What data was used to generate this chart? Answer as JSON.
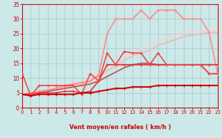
{
  "xlabel": "Vent moyen/en rafales ( km/h )",
  "xlim": [
    0,
    23
  ],
  "ylim": [
    0,
    35
  ],
  "yticks": [
    0,
    5,
    10,
    15,
    20,
    25,
    30,
    35
  ],
  "xticks": [
    0,
    1,
    2,
    3,
    4,
    5,
    6,
    7,
    8,
    9,
    10,
    11,
    12,
    13,
    14,
    15,
    16,
    17,
    18,
    19,
    20,
    21,
    22,
    23
  ],
  "bg_color": "#cce8e8",
  "grid_color": "#aacccc",
  "lines": [
    {
      "comment": "bottom dark red nearly flat line with + markers",
      "x": [
        0,
        1,
        2,
        3,
        4,
        5,
        6,
        7,
        8,
        9,
        10,
        11,
        12,
        13,
        14,
        15,
        16,
        17,
        18,
        19,
        20,
        21,
        22,
        23
      ],
      "y": [
        4.5,
        4.0,
        4.5,
        4.5,
        4.5,
        4.5,
        4.5,
        5.0,
        5.0,
        5.5,
        6.0,
        6.5,
        6.5,
        7.0,
        7.0,
        7.0,
        7.5,
        7.5,
        7.5,
        7.5,
        7.5,
        7.5,
        7.5,
        7.5
      ],
      "color": "#cc0000",
      "lw": 1.5,
      "marker": "+",
      "ms": 3.5,
      "zorder": 5
    },
    {
      "comment": "medium dark red with + markers, jagged, starts at ~4, goes to ~15",
      "x": [
        0,
        1,
        2,
        3,
        4,
        5,
        6,
        7,
        8,
        9,
        10,
        11,
        12,
        13,
        14,
        15,
        16,
        17,
        18,
        19,
        20,
        21,
        22,
        23
      ],
      "y": [
        4.5,
        4.5,
        5.0,
        5.0,
        5.0,
        5.5,
        5.5,
        5.0,
        5.5,
        9.0,
        14.5,
        14.5,
        14.5,
        14.5,
        14.5,
        14.5,
        14.5,
        14.5,
        14.5,
        14.5,
        14.5,
        14.5,
        14.5,
        14.5
      ],
      "color": "#dd3333",
      "lw": 1.2,
      "marker": "+",
      "ms": 3.5,
      "zorder": 4
    },
    {
      "comment": "jagged line with + markers, starts ~11, dips, rises to ~19",
      "x": [
        0,
        1,
        2,
        3,
        4,
        5,
        6,
        7,
        8,
        9,
        10,
        11,
        12,
        13,
        14,
        15,
        16,
        17,
        18,
        19,
        20,
        21,
        22,
        23
      ],
      "y": [
        11.5,
        4.0,
        7.5,
        7.5,
        7.5,
        7.5,
        7.5,
        4.5,
        11.5,
        9.0,
        18.5,
        14.5,
        19.0,
        18.5,
        18.5,
        14.5,
        18.5,
        14.5,
        14.5,
        14.5,
        14.5,
        14.5,
        11.5,
        11.5
      ],
      "color": "#ee4444",
      "lw": 1.2,
      "marker": "+",
      "ms": 3.5,
      "zorder": 4
    },
    {
      "comment": "smooth rising light pink line - upper bound, reaches ~25",
      "x": [
        0,
        1,
        2,
        3,
        4,
        5,
        6,
        7,
        8,
        9,
        10,
        11,
        12,
        13,
        14,
        15,
        16,
        17,
        18,
        19,
        20,
        21,
        22,
        23
      ],
      "y": [
        4.5,
        5.0,
        5.5,
        6.0,
        6.5,
        7.0,
        7.5,
        8.0,
        9.0,
        10.5,
        12.5,
        14.0,
        16.0,
        17.5,
        18.5,
        19.5,
        21.0,
        22.0,
        23.0,
        24.0,
        24.5,
        25.0,
        25.5,
        25.5
      ],
      "color": "#ffaaaa",
      "lw": 1.0,
      "marker": null,
      "ms": 0,
      "zorder": 2
    },
    {
      "comment": "smooth rising lighter pink - slightly above previous",
      "x": [
        0,
        1,
        2,
        3,
        4,
        5,
        6,
        7,
        8,
        9,
        10,
        11,
        12,
        13,
        14,
        15,
        16,
        17,
        18,
        19,
        20,
        21,
        22,
        23
      ],
      "y": [
        4.5,
        5.0,
        5.5,
        6.0,
        7.0,
        7.5,
        8.0,
        8.5,
        10.0,
        11.5,
        13.5,
        15.5,
        17.5,
        19.0,
        20.0,
        21.5,
        22.5,
        23.5,
        24.5,
        25.5,
        26.0,
        26.0,
        26.0,
        26.0
      ],
      "color": "#ffcccc",
      "lw": 1.0,
      "marker": null,
      "ms": 0,
      "zorder": 2
    },
    {
      "comment": "top peaked line with + markers - salmon/pink, peaks ~33",
      "x": [
        0,
        1,
        2,
        3,
        4,
        5,
        6,
        7,
        8,
        9,
        10,
        11,
        12,
        13,
        14,
        15,
        16,
        17,
        18,
        19,
        20,
        21,
        22,
        23
      ],
      "y": [
        4.5,
        5.0,
        5.5,
        6.0,
        6.5,
        7.5,
        8.0,
        8.5,
        9.0,
        11.0,
        25.0,
        30.0,
        30.0,
        30.0,
        33.0,
        30.0,
        33.0,
        33.0,
        33.0,
        30.0,
        30.0,
        30.0,
        25.5,
        11.5
      ],
      "color": "#ff8888",
      "lw": 1.2,
      "marker": "+",
      "ms": 3.5,
      "zorder": 3
    },
    {
      "comment": "dark smooth medium line no markers, reaches ~15 then drops",
      "x": [
        0,
        1,
        2,
        3,
        4,
        5,
        6,
        7,
        8,
        9,
        10,
        11,
        12,
        13,
        14,
        15,
        16,
        17,
        18,
        19,
        20,
        21,
        22,
        23
      ],
      "y": [
        4.5,
        4.5,
        5.0,
        5.5,
        6.0,
        6.5,
        7.0,
        7.5,
        8.0,
        9.0,
        10.5,
        12.0,
        13.5,
        14.5,
        15.0,
        15.0,
        14.5,
        14.5,
        14.5,
        14.5,
        14.5,
        14.5,
        11.5,
        11.5
      ],
      "color": "#cc4444",
      "lw": 1.2,
      "marker": null,
      "ms": 0,
      "zorder": 3
    }
  ],
  "arrow_symbols": [
    "↗",
    "↑",
    "↖",
    "↖",
    "↖",
    "↖",
    "←",
    "→",
    "↘",
    "↘",
    "↓",
    "↙",
    "↓",
    "↓",
    "↓",
    "↓",
    "↓",
    "↓",
    "↓",
    "↓",
    "↓",
    "↓",
    "↓"
  ],
  "axis_color": "#cc0000",
  "tick_color": "#cc0000",
  "label_color": "#cc0000"
}
